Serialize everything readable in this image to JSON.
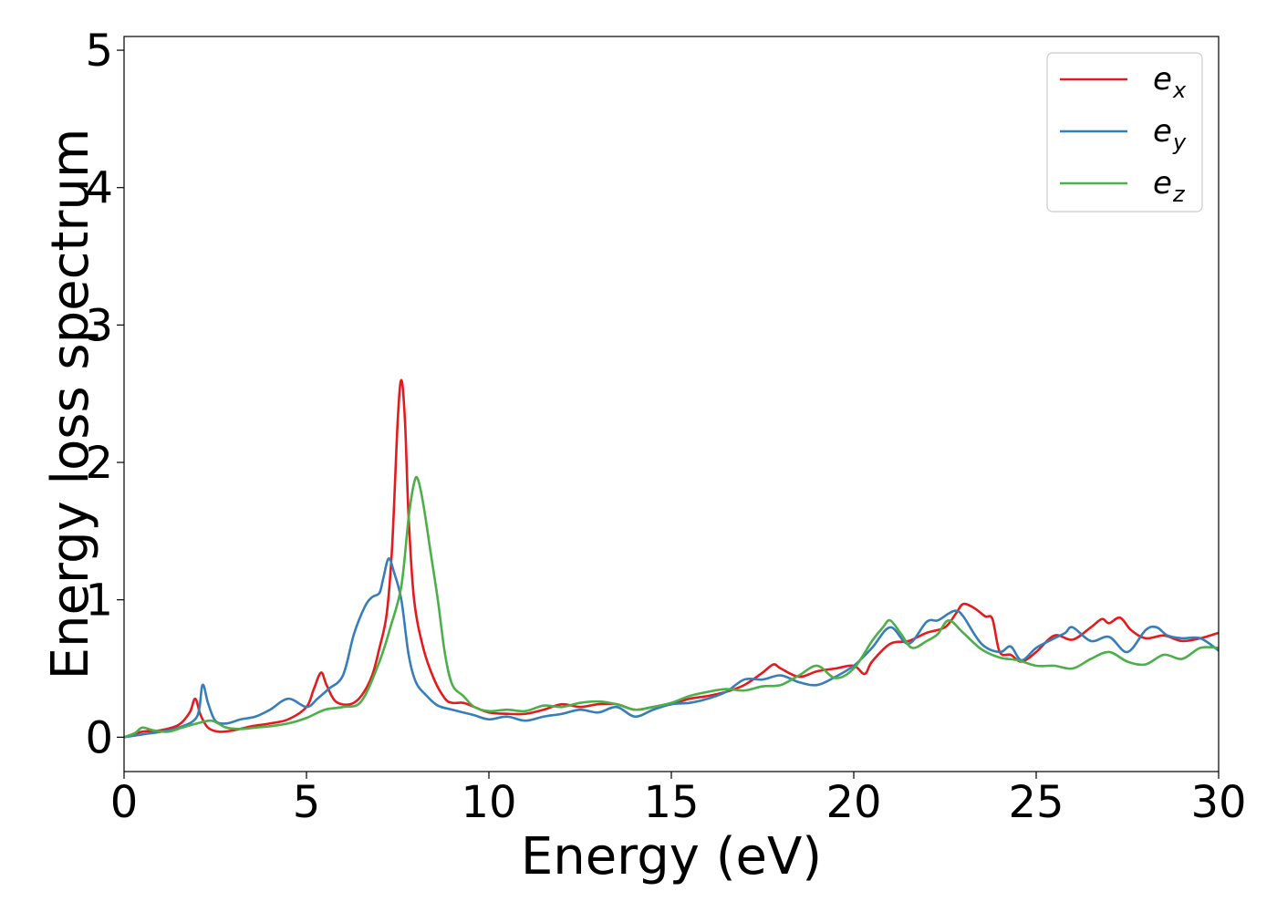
{
  "chart_data": {
    "type": "line",
    "title": "",
    "xlabel": "Energy (eV)",
    "ylabel": "Energy loss spectrum",
    "xlim": [
      0,
      30
    ],
    "ylim": [
      -0.25,
      5.1
    ],
    "xticks": [
      0,
      5,
      10,
      15,
      20,
      25,
      30
    ],
    "yticks": [
      0,
      1,
      2,
      3,
      4,
      5
    ],
    "grid": false,
    "legend_position": "top-right",
    "series": [
      {
        "name": "e_x",
        "legend_base": "e",
        "legend_sub": "x",
        "color": "#e41a1c",
        "x": [
          0,
          0.5,
          1,
          1.5,
          1.8,
          1.95,
          2.1,
          2.3,
          2.6,
          3.0,
          3.5,
          4.0,
          4.5,
          5.0,
          5.2,
          5.4,
          5.55,
          5.8,
          6.2,
          6.5,
          6.8,
          7.0,
          7.2,
          7.35,
          7.5,
          7.6,
          7.7,
          7.8,
          7.95,
          8.2,
          8.5,
          8.8,
          9.0,
          9.3,
          9.6,
          10.0,
          10.5,
          11.0,
          11.5,
          12.0,
          12.5,
          13.0,
          13.5,
          14.0,
          14.5,
          15.0,
          15.5,
          16.0,
          16.5,
          17.0,
          17.5,
          17.8,
          18.0,
          18.5,
          19.0,
          19.5,
          20.0,
          20.3,
          20.5,
          21.0,
          21.5,
          22.0,
          22.5,
          22.8,
          23.0,
          23.3,
          23.6,
          23.8,
          24.0,
          24.3,
          24.6,
          25.0,
          25.5,
          26.0,
          26.5,
          26.8,
          27.0,
          27.3,
          27.6,
          28.0,
          28.5,
          29.0,
          29.5,
          30.0
        ],
        "values": [
          0.0,
          0.04,
          0.05,
          0.09,
          0.18,
          0.28,
          0.16,
          0.07,
          0.04,
          0.05,
          0.08,
          0.1,
          0.13,
          0.22,
          0.35,
          0.47,
          0.38,
          0.26,
          0.24,
          0.3,
          0.45,
          0.65,
          0.9,
          1.4,
          2.3,
          2.6,
          2.3,
          1.6,
          1.0,
          0.65,
          0.42,
          0.28,
          0.25,
          0.25,
          0.22,
          0.18,
          0.17,
          0.17,
          0.2,
          0.24,
          0.22,
          0.24,
          0.24,
          0.2,
          0.22,
          0.24,
          0.28,
          0.3,
          0.33,
          0.38,
          0.47,
          0.53,
          0.5,
          0.44,
          0.48,
          0.5,
          0.52,
          0.46,
          0.55,
          0.68,
          0.7,
          0.76,
          0.8,
          0.9,
          0.97,
          0.94,
          0.88,
          0.86,
          0.62,
          0.6,
          0.55,
          0.62,
          0.74,
          0.71,
          0.8,
          0.86,
          0.83,
          0.87,
          0.78,
          0.72,
          0.74,
          0.7,
          0.72,
          0.76
        ]
      },
      {
        "name": "e_y",
        "legend_base": "e",
        "legend_sub": "y",
        "color": "#377eb8",
        "x": [
          0,
          0.5,
          1,
          1.5,
          2.0,
          2.15,
          2.3,
          2.5,
          2.8,
          3.2,
          3.6,
          4.0,
          4.5,
          5.0,
          5.3,
          5.6,
          6.0,
          6.3,
          6.6,
          6.8,
          7.0,
          7.1,
          7.25,
          7.4,
          7.6,
          7.8,
          8.0,
          8.3,
          8.6,
          9.0,
          9.3,
          9.6,
          10.0,
          10.5,
          11.0,
          11.5,
          12.0,
          12.5,
          13.0,
          13.5,
          14.0,
          14.5,
          15.0,
          15.5,
          16.0,
          16.5,
          17.0,
          17.5,
          18.0,
          18.5,
          19.0,
          19.5,
          20.0,
          20.5,
          21.0,
          21.5,
          22.0,
          22.3,
          22.6,
          22.8,
          23.0,
          23.5,
          24.0,
          24.3,
          24.6,
          25.0,
          25.5,
          25.8,
          26.0,
          26.5,
          27.0,
          27.5,
          28.0,
          28.3,
          28.6,
          29.0,
          29.5,
          30.0
        ],
        "values": [
          0.0,
          0.02,
          0.04,
          0.07,
          0.15,
          0.38,
          0.25,
          0.12,
          0.1,
          0.13,
          0.15,
          0.2,
          0.28,
          0.22,
          0.28,
          0.35,
          0.45,
          0.75,
          0.95,
          1.02,
          1.05,
          1.15,
          1.3,
          1.2,
          1.0,
          0.6,
          0.4,
          0.3,
          0.23,
          0.2,
          0.18,
          0.16,
          0.13,
          0.15,
          0.12,
          0.15,
          0.17,
          0.2,
          0.18,
          0.22,
          0.15,
          0.2,
          0.24,
          0.25,
          0.28,
          0.33,
          0.42,
          0.42,
          0.45,
          0.4,
          0.38,
          0.44,
          0.52,
          0.65,
          0.8,
          0.68,
          0.84,
          0.85,
          0.9,
          0.92,
          0.88,
          0.68,
          0.62,
          0.66,
          0.56,
          0.65,
          0.72,
          0.76,
          0.8,
          0.7,
          0.73,
          0.62,
          0.78,
          0.8,
          0.74,
          0.72,
          0.72,
          0.63
        ]
      },
      {
        "name": "e_z",
        "legend_base": "e",
        "legend_sub": "z",
        "color": "#4daf4a",
        "x": [
          0,
          0.3,
          0.5,
          0.8,
          1.2,
          1.6,
          2.0,
          2.4,
          2.8,
          3.2,
          3.6,
          4.0,
          4.5,
          5.0,
          5.5,
          6.0,
          6.5,
          7.0,
          7.3,
          7.6,
          7.8,
          7.95,
          8.05,
          8.2,
          8.4,
          8.6,
          8.8,
          9.0,
          9.3,
          9.6,
          10.0,
          10.5,
          11.0,
          11.5,
          12.0,
          12.5,
          13.0,
          13.5,
          14.0,
          14.5,
          15.0,
          15.5,
          16.0,
          16.5,
          17.0,
          17.5,
          18.0,
          18.5,
          19.0,
          19.5,
          20.0,
          20.5,
          20.8,
          21.0,
          21.3,
          21.6,
          22.0,
          22.3,
          22.6,
          23.0,
          23.5,
          24.0,
          24.5,
          25.0,
          25.5,
          26.0,
          26.5,
          27.0,
          27.5,
          28.0,
          28.5,
          29.0,
          29.5,
          30.0
        ],
        "values": [
          0.0,
          0.03,
          0.07,
          0.05,
          0.04,
          0.07,
          0.1,
          0.12,
          0.07,
          0.06,
          0.07,
          0.08,
          0.1,
          0.14,
          0.2,
          0.22,
          0.26,
          0.55,
          0.8,
          1.1,
          1.6,
          1.85,
          1.88,
          1.7,
          1.35,
          1.0,
          0.6,
          0.38,
          0.3,
          0.22,
          0.19,
          0.2,
          0.19,
          0.23,
          0.22,
          0.25,
          0.26,
          0.24,
          0.2,
          0.22,
          0.25,
          0.3,
          0.33,
          0.35,
          0.34,
          0.37,
          0.38,
          0.45,
          0.52,
          0.43,
          0.5,
          0.7,
          0.8,
          0.85,
          0.75,
          0.65,
          0.7,
          0.75,
          0.85,
          0.76,
          0.64,
          0.58,
          0.56,
          0.52,
          0.52,
          0.5,
          0.57,
          0.62,
          0.55,
          0.53,
          0.6,
          0.57,
          0.65,
          0.65
        ]
      }
    ]
  }
}
